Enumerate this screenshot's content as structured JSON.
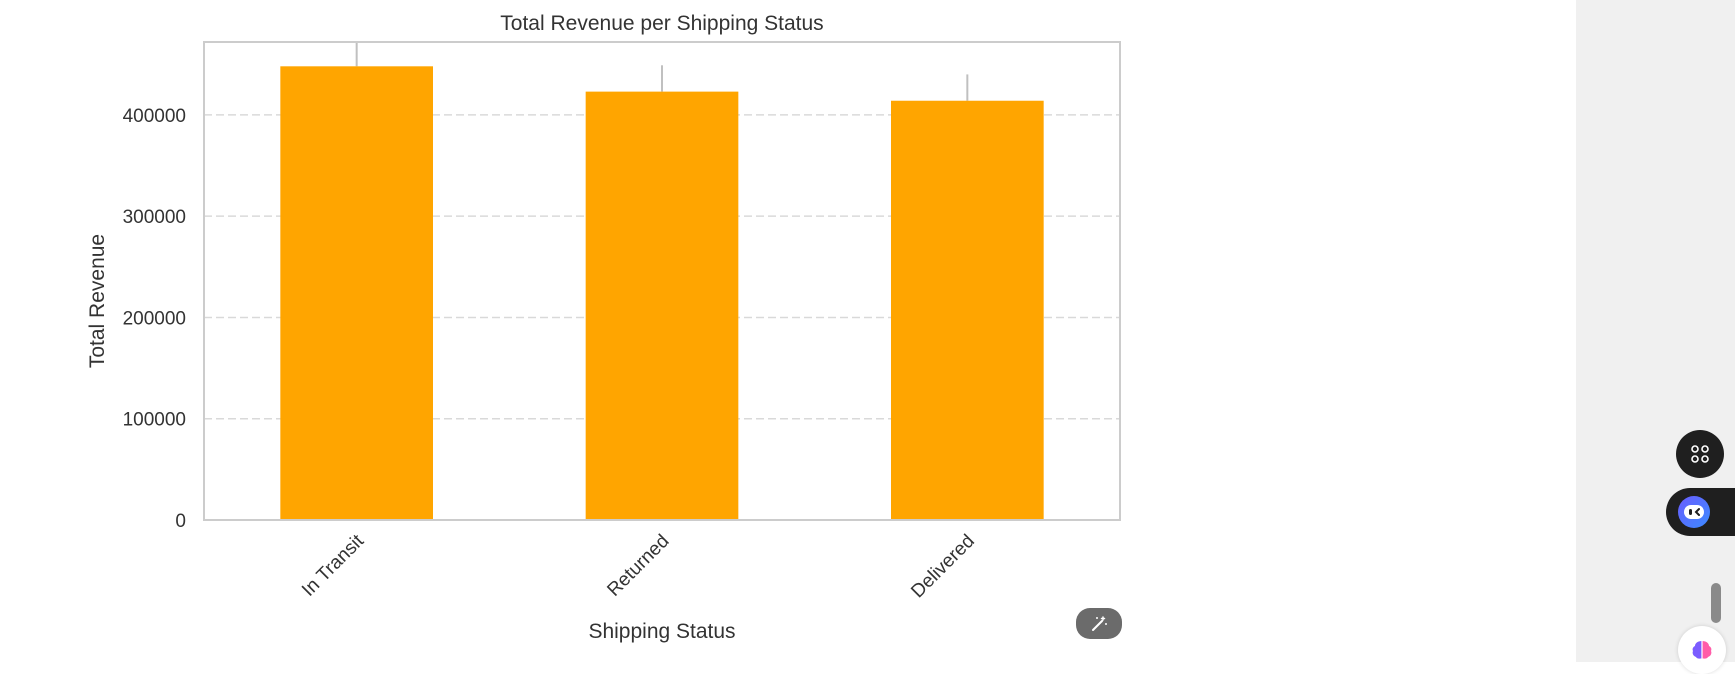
{
  "chart_data": {
    "type": "bar",
    "title": "Total Revenue per Shipping Status",
    "xlabel": "Shipping Status",
    "ylabel": "Total Revenue",
    "categories": [
      "In Transit",
      "Returned",
      "Delivered"
    ],
    "values": [
      448000,
      423000,
      414000
    ],
    "error_upper": [
      473000,
      449000,
      440000
    ],
    "ylim": [
      0,
      472000
    ],
    "yticks": [
      0,
      100000,
      200000,
      300000,
      400000
    ],
    "ytick_labels": [
      "0",
      "100000",
      "200000",
      "300000",
      "400000"
    ],
    "grid": "horizontal dashed",
    "bar_color": "#FFA500"
  },
  "ui": {
    "magic_button_icon": "magic-wand-icon",
    "apps_button_icon": "command-icon",
    "assistant_icon": "assistant-face-icon",
    "brain_icon": "brain-icon"
  }
}
